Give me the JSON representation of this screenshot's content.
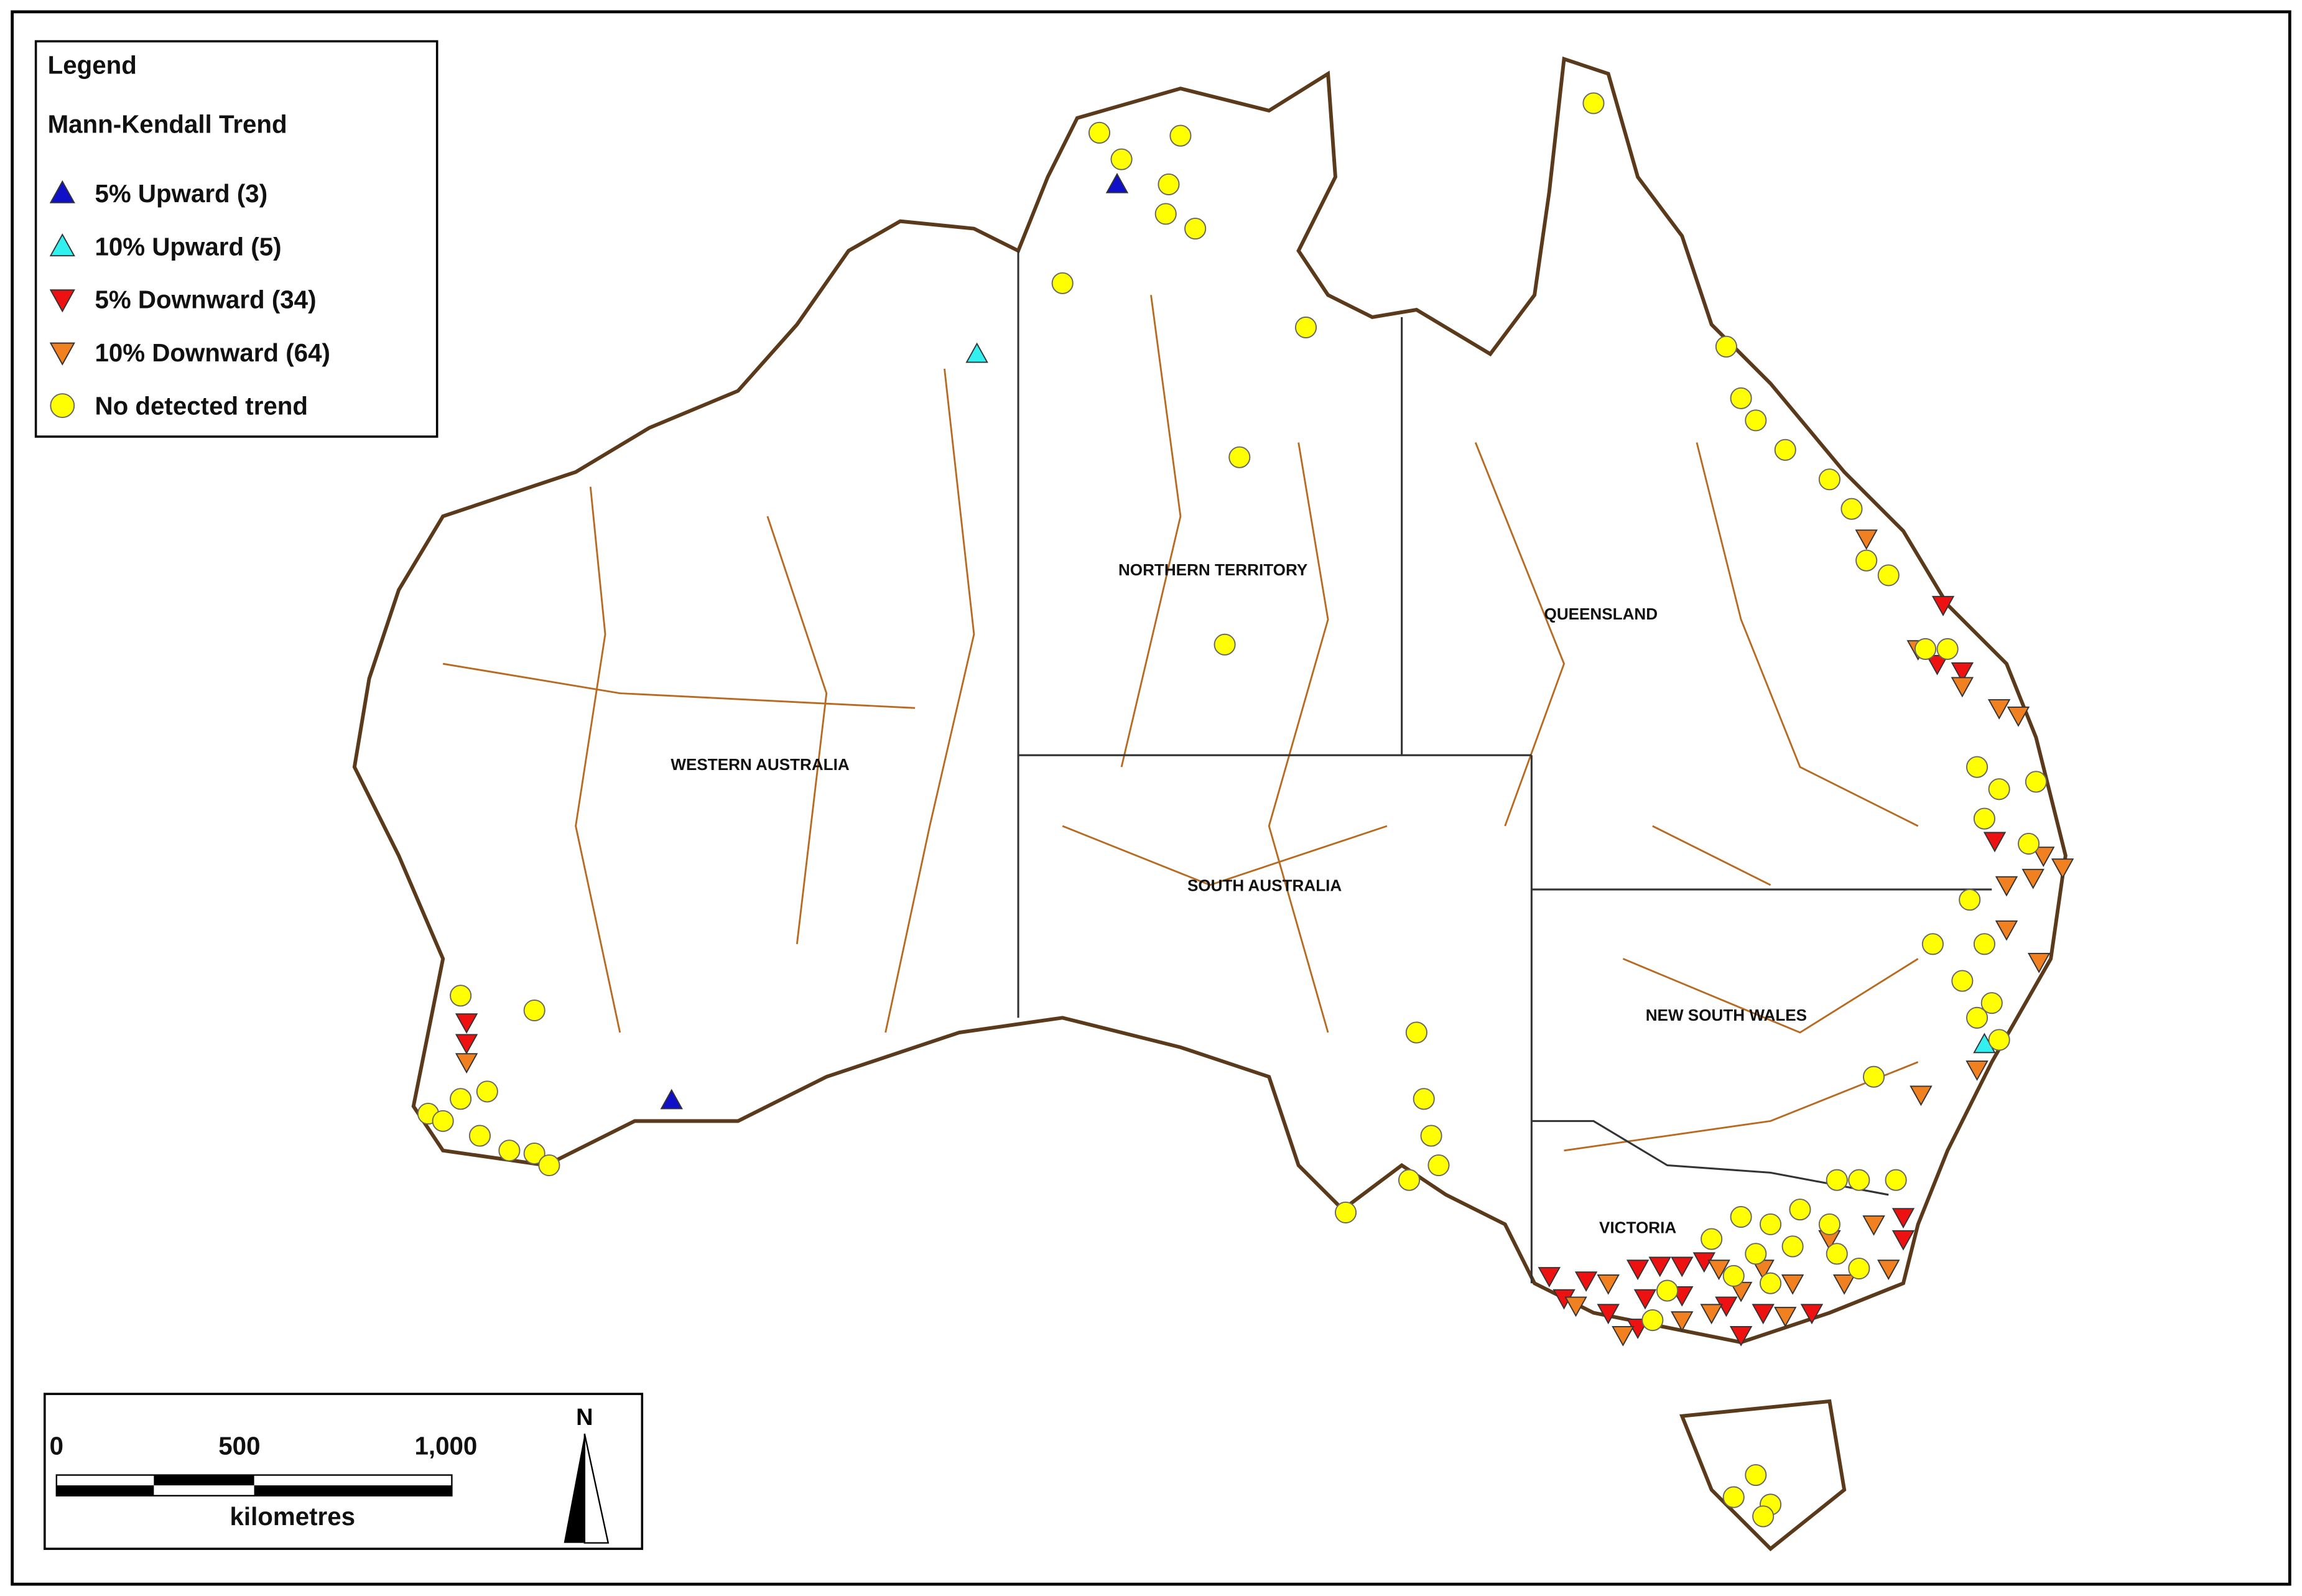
{
  "legend": {
    "title": "Legend",
    "subtitle": "Mann-Kendall Trend",
    "items": [
      {
        "label": "5% Upward (3)",
        "color": "#1010c8",
        "symbol": "triangle-up"
      },
      {
        "label": "10% Upward (5)",
        "color": "#33f0f0",
        "symbol": "triangle-up"
      },
      {
        "label": "5% Downward (34)",
        "color": "#ee1111",
        "symbol": "triangle-down"
      },
      {
        "label": "10% Downward (64)",
        "color": "#f08020",
        "symbol": "triangle-down"
      },
      {
        "label": "No detected trend",
        "color": "#ffff00",
        "symbol": "circle"
      }
    ]
  },
  "regions": [
    "NORTHERN TERRITORY",
    "QUEENSLAND",
    "WESTERN AUSTRALIA",
    "SOUTH AUSTRALIA",
    "NEW SOUTH WALES",
    "VICTORIA"
  ],
  "scale_bar": {
    "labels": [
      "0",
      "500",
      "1,000"
    ],
    "unit": "kilometres"
  },
  "north_arrow": "N"
}
